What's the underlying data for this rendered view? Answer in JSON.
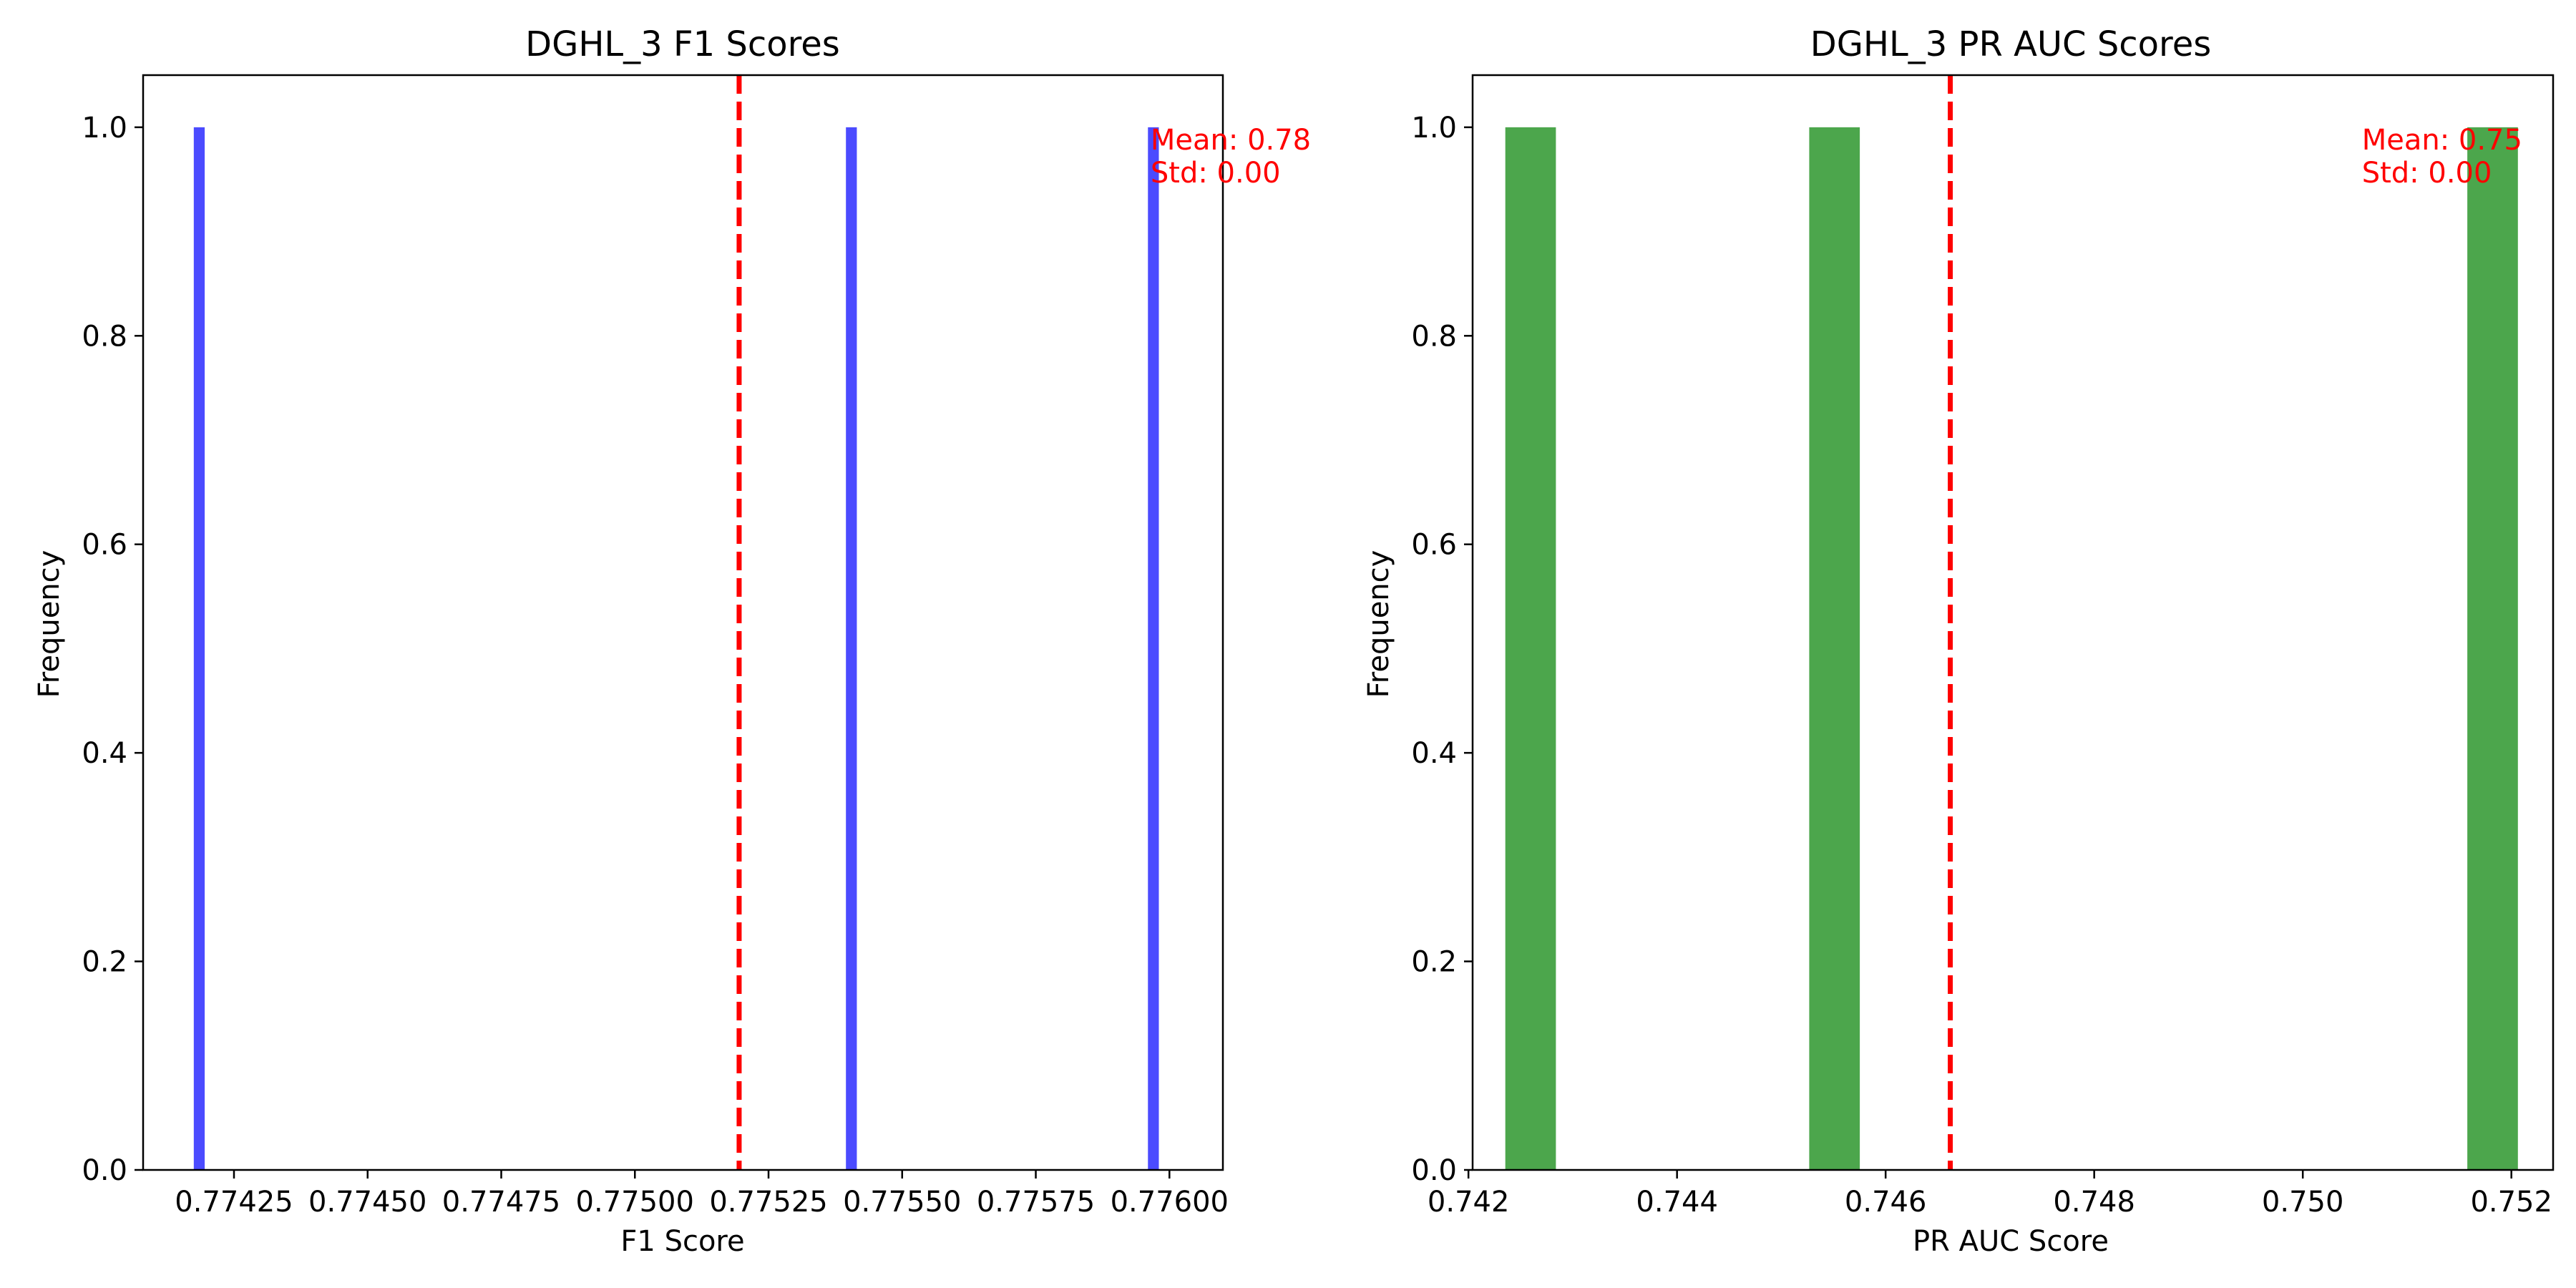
{
  "chart_data": [
    {
      "type": "bar",
      "title": "DGHL_3 F1 Scores",
      "xlabel": "F1 Score",
      "ylabel": "Frequency",
      "color": "#4b4bff",
      "mean": 0.775195,
      "mean_line_color": "#ff0000",
      "annotation": [
        "Mean: 0.78",
        "Std: 0.00"
      ],
      "bar_width": 2.04e-05,
      "bars": [
        {
          "x": 0.774185,
          "value": 1.0
        },
        {
          "x": 0.775405,
          "value": 1.0
        },
        {
          "x": 0.77597,
          "value": 1.0
        }
      ],
      "xlim": [
        0.77408,
        0.7761
      ],
      "ylim": [
        0,
        1.05
      ],
      "xticks": [
        0.77425,
        0.7745,
        0.77475,
        0.775,
        0.77525,
        0.7755,
        0.77575,
        0.776
      ],
      "xtick_labels": [
        "0.77425",
        "0.77450",
        "0.77475",
        "0.77500",
        "0.77525",
        "0.77550",
        "0.77575",
        "0.77600"
      ],
      "yticks": [
        0.0,
        0.2,
        0.4,
        0.6,
        0.8,
        1.0
      ],
      "ytick_labels": [
        "0.0",
        "0.2",
        "0.4",
        "0.6",
        "0.8",
        "1.0"
      ],
      "grid": false
    },
    {
      "type": "bar",
      "title": "DGHL_3 PR AUC Scores",
      "xlabel": "PR AUC Score",
      "ylabel": "Frequency",
      "color": "#4ca64c",
      "mean": 0.74662,
      "mean_line_color": "#ff0000",
      "annotation": [
        "Mean: 0.75",
        "Std: 0.00"
      ],
      "bar_width": 0.000485,
      "bars": [
        {
          "x": 0.742596,
          "value": 1.0
        },
        {
          "x": 0.74551,
          "value": 1.0
        },
        {
          "x": 0.75182,
          "value": 1.0
        }
      ],
      "xlim": [
        0.74204,
        0.7524
      ],
      "ylim": [
        0,
        1.05
      ],
      "xticks": [
        0.742,
        0.744,
        0.746,
        0.748,
        0.75,
        0.752
      ],
      "xtick_labels": [
        "0.742",
        "0.744",
        "0.746",
        "0.748",
        "0.750",
        "0.752"
      ],
      "yticks": [
        0.0,
        0.2,
        0.4,
        0.6,
        0.8,
        1.0
      ],
      "ytick_labels": [
        "0.0",
        "0.2",
        "0.4",
        "0.6",
        "0.8",
        "1.0"
      ],
      "grid": false
    }
  ]
}
